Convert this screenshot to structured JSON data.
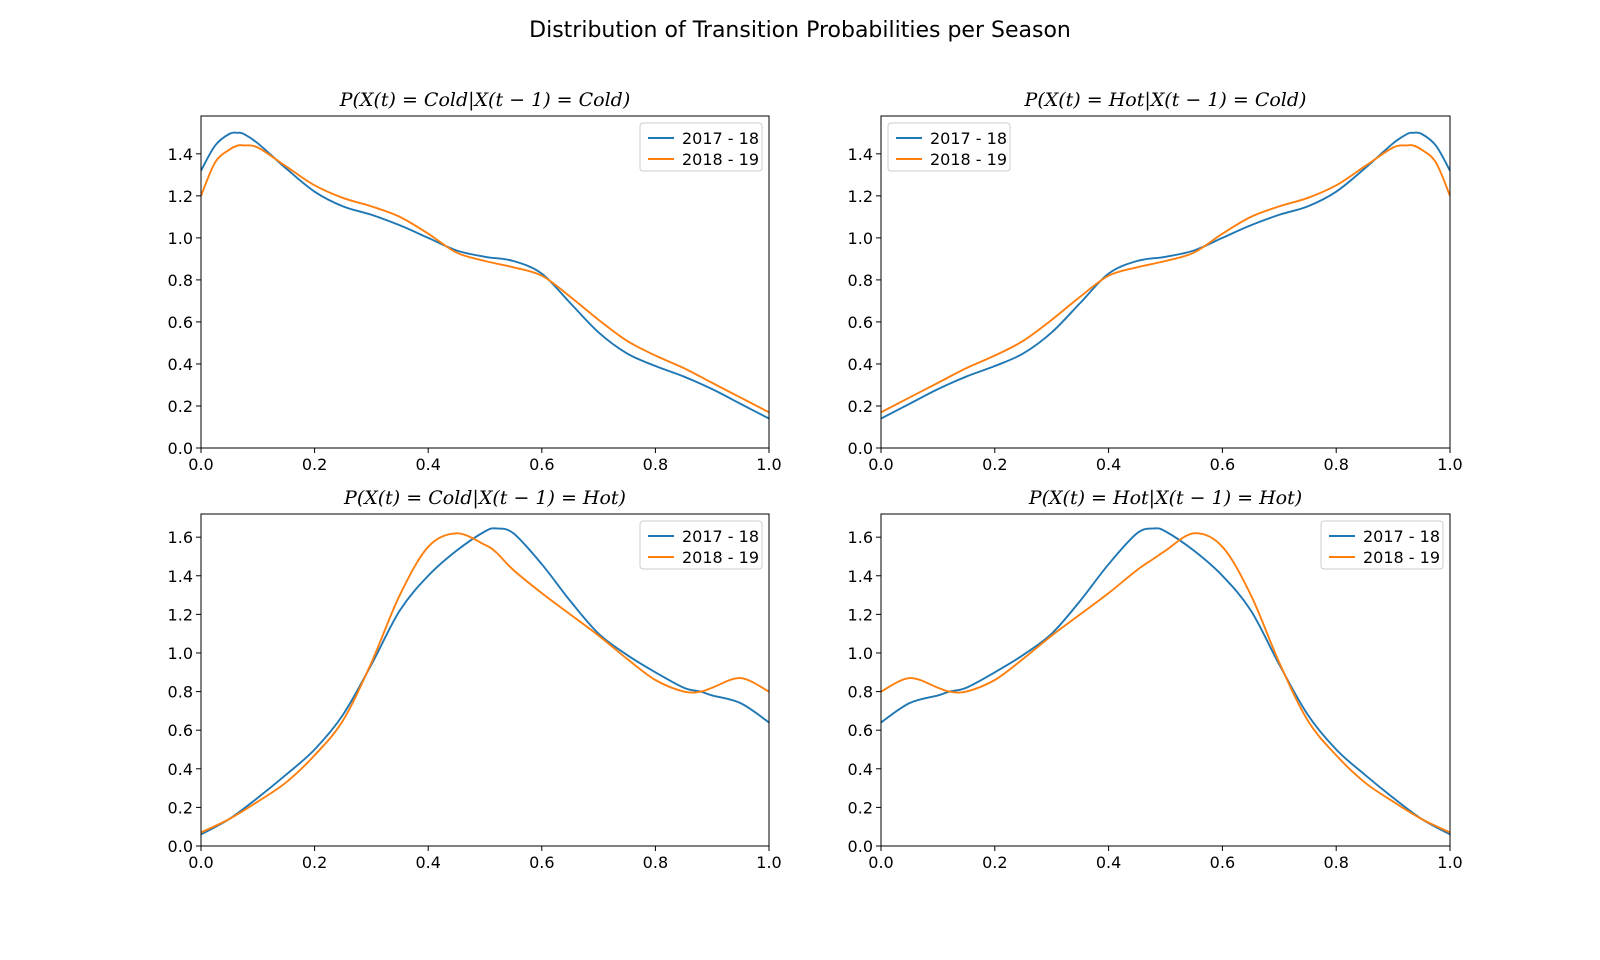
{
  "figure": {
    "title": "Distribution of Transition Probabilities per Season"
  },
  "chart_data": [
    {
      "type": "line",
      "title": "P(X(t) = Cold|X(t − 1) = Cold)",
      "xlabel": "",
      "ylabel": "",
      "xlim": [
        0,
        1
      ],
      "ylim": [
        0,
        1.58
      ],
      "xticks": [
        0.0,
        0.2,
        0.4,
        0.6,
        0.8,
        1.0
      ],
      "yticks": [
        0.0,
        0.2,
        0.4,
        0.6,
        0.8,
        1.0,
        1.2,
        1.4
      ],
      "xtick_labels": [
        "0.0",
        "0.2",
        "0.4",
        "0.6",
        "0.8",
        "1.0"
      ],
      "ytick_labels": [
        "0.0",
        "0.2",
        "0.4",
        "0.6",
        "0.8",
        "1.0",
        "1.2",
        "1.4"
      ],
      "grid": false,
      "legend": "top-right",
      "x": [
        0.0,
        0.025,
        0.05,
        0.065,
        0.075,
        0.1,
        0.15,
        0.2,
        0.25,
        0.3,
        0.35,
        0.4,
        0.45,
        0.5,
        0.55,
        0.6,
        0.65,
        0.7,
        0.75,
        0.8,
        0.85,
        0.9,
        0.95,
        1.0
      ],
      "series": [
        {
          "name": "2017 - 18",
          "color": "#1f77b4",
          "values": [
            1.32,
            1.44,
            1.495,
            1.5,
            1.495,
            1.45,
            1.33,
            1.22,
            1.15,
            1.11,
            1.06,
            1.0,
            0.94,
            0.91,
            0.89,
            0.83,
            0.69,
            0.55,
            0.45,
            0.39,
            0.34,
            0.28,
            0.21,
            0.14
          ]
        },
        {
          "name": "2018 - 19",
          "color": "#ff7f0e",
          "values": [
            1.2,
            1.36,
            1.42,
            1.44,
            1.44,
            1.43,
            1.34,
            1.25,
            1.19,
            1.15,
            1.1,
            1.02,
            0.93,
            0.89,
            0.86,
            0.82,
            0.72,
            0.61,
            0.51,
            0.44,
            0.38,
            0.31,
            0.24,
            0.17
          ]
        }
      ]
    },
    {
      "type": "line",
      "title": "P(X(t) = Hot|X(t − 1) = Cold)",
      "xlabel": "",
      "ylabel": "",
      "xlim": [
        0,
        1
      ],
      "ylim": [
        0,
        1.58
      ],
      "xticks": [
        0.0,
        0.2,
        0.4,
        0.6,
        0.8,
        1.0
      ],
      "yticks": [
        0.0,
        0.2,
        0.4,
        0.6,
        0.8,
        1.0,
        1.2,
        1.4
      ],
      "xtick_labels": [
        "0.0",
        "0.2",
        "0.4",
        "0.6",
        "0.8",
        "1.0"
      ],
      "ytick_labels": [
        "0.0",
        "0.2",
        "0.4",
        "0.6",
        "0.8",
        "1.0",
        "1.2",
        "1.4"
      ],
      "grid": false,
      "legend": "top-left",
      "x": [
        0.0,
        0.05,
        0.1,
        0.15,
        0.2,
        0.25,
        0.3,
        0.35,
        0.4,
        0.45,
        0.5,
        0.55,
        0.6,
        0.65,
        0.7,
        0.75,
        0.8,
        0.85,
        0.9,
        0.925,
        0.935,
        0.95,
        0.975,
        1.0
      ],
      "series": [
        {
          "name": "2017 - 18",
          "color": "#1f77b4",
          "values": [
            0.14,
            0.21,
            0.28,
            0.34,
            0.39,
            0.45,
            0.55,
            0.69,
            0.83,
            0.89,
            0.91,
            0.94,
            1.0,
            1.06,
            1.11,
            1.15,
            1.22,
            1.33,
            1.45,
            1.495,
            1.5,
            1.495,
            1.44,
            1.32
          ]
        },
        {
          "name": "2018 - 19",
          "color": "#ff7f0e",
          "values": [
            0.17,
            0.24,
            0.31,
            0.38,
            0.44,
            0.51,
            0.61,
            0.72,
            0.82,
            0.86,
            0.89,
            0.93,
            1.02,
            1.1,
            1.15,
            1.19,
            1.25,
            1.34,
            1.43,
            1.44,
            1.44,
            1.42,
            1.36,
            1.2
          ]
        }
      ]
    },
    {
      "type": "line",
      "title": "P(X(t) = Cold|X(t − 1) = Hot)",
      "xlabel": "",
      "ylabel": "",
      "xlim": [
        0,
        1
      ],
      "ylim": [
        0,
        1.72
      ],
      "xticks": [
        0.0,
        0.2,
        0.4,
        0.6,
        0.8,
        1.0
      ],
      "yticks": [
        0.0,
        0.2,
        0.4,
        0.6,
        0.8,
        1.0,
        1.2,
        1.4,
        1.6
      ],
      "xtick_labels": [
        "0.0",
        "0.2",
        "0.4",
        "0.6",
        "0.8",
        "1.0"
      ],
      "ytick_labels": [
        "0.0",
        "0.2",
        "0.4",
        "0.6",
        "0.8",
        "1.0",
        "1.2",
        "1.4",
        "1.6"
      ],
      "grid": false,
      "legend": "top-right",
      "x": [
        0.0,
        0.05,
        0.1,
        0.15,
        0.2,
        0.25,
        0.3,
        0.35,
        0.4,
        0.45,
        0.5,
        0.52,
        0.55,
        0.6,
        0.65,
        0.7,
        0.75,
        0.8,
        0.85,
        0.88,
        0.9,
        0.95,
        1.0
      ],
      "series": [
        {
          "name": "2017 - 18",
          "color": "#1f77b4",
          "values": [
            0.06,
            0.14,
            0.25,
            0.37,
            0.5,
            0.68,
            0.94,
            1.22,
            1.4,
            1.53,
            1.63,
            1.645,
            1.62,
            1.46,
            1.27,
            1.1,
            0.99,
            0.9,
            0.82,
            0.8,
            0.78,
            0.74,
            0.64
          ]
        },
        {
          "name": "2018 - 19",
          "color": "#ff7f0e",
          "values": [
            0.07,
            0.14,
            0.23,
            0.33,
            0.47,
            0.65,
            0.95,
            1.3,
            1.55,
            1.62,
            1.56,
            1.52,
            1.43,
            1.31,
            1.2,
            1.09,
            0.97,
            0.86,
            0.8,
            0.8,
            0.82,
            0.87,
            0.8
          ]
        }
      ]
    },
    {
      "type": "line",
      "title": "P(X(t) = Hot|X(t − 1) = Hot)",
      "xlabel": "",
      "ylabel": "",
      "xlim": [
        0,
        1
      ],
      "ylim": [
        0,
        1.72
      ],
      "xticks": [
        0.0,
        0.2,
        0.4,
        0.6,
        0.8,
        1.0
      ],
      "yticks": [
        0.0,
        0.2,
        0.4,
        0.6,
        0.8,
        1.0,
        1.2,
        1.4,
        1.6
      ],
      "xtick_labels": [
        "0.0",
        "0.2",
        "0.4",
        "0.6",
        "0.8",
        "1.0"
      ],
      "ytick_labels": [
        "0.0",
        "0.2",
        "0.4",
        "0.6",
        "0.8",
        "1.0",
        "1.2",
        "1.4",
        "1.6"
      ],
      "grid": false,
      "legend": "top-right",
      "x": [
        0.0,
        0.05,
        0.1,
        0.12,
        0.15,
        0.2,
        0.25,
        0.3,
        0.35,
        0.4,
        0.45,
        0.48,
        0.5,
        0.55,
        0.6,
        0.65,
        0.7,
        0.75,
        0.8,
        0.85,
        0.9,
        0.95,
        1.0
      ],
      "series": [
        {
          "name": "2017 - 18",
          "color": "#1f77b4",
          "values": [
            0.64,
            0.74,
            0.78,
            0.8,
            0.82,
            0.9,
            0.99,
            1.1,
            1.27,
            1.46,
            1.62,
            1.645,
            1.63,
            1.53,
            1.4,
            1.22,
            0.94,
            0.68,
            0.5,
            0.37,
            0.25,
            0.14,
            0.06
          ]
        },
        {
          "name": "2018 - 19",
          "color": "#ff7f0e",
          "values": [
            0.8,
            0.87,
            0.82,
            0.8,
            0.8,
            0.86,
            0.97,
            1.09,
            1.2,
            1.31,
            1.43,
            1.49,
            1.53,
            1.62,
            1.55,
            1.3,
            0.95,
            0.65,
            0.47,
            0.33,
            0.23,
            0.14,
            0.07
          ]
        }
      ]
    }
  ]
}
